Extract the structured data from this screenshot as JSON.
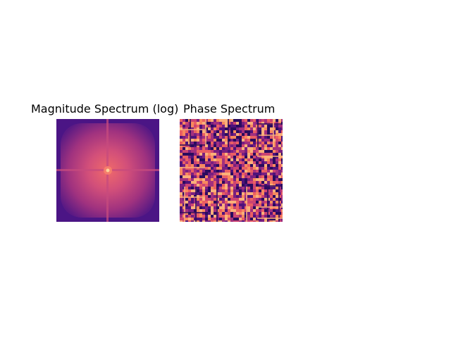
{
  "figure": {
    "panels": [
      {
        "title": "Magnitude Spectrum (log)",
        "colormap": "magma",
        "kind": "magnitude"
      },
      {
        "title": "Phase Spectrum",
        "colormap": "magma",
        "kind": "phase"
      }
    ]
  },
  "colors": {
    "magma_dark": "#3b0f70",
    "magma_mid": "#b73779",
    "magma_bright": "#fc8961",
    "magma_peak": "#fcfdbf"
  }
}
